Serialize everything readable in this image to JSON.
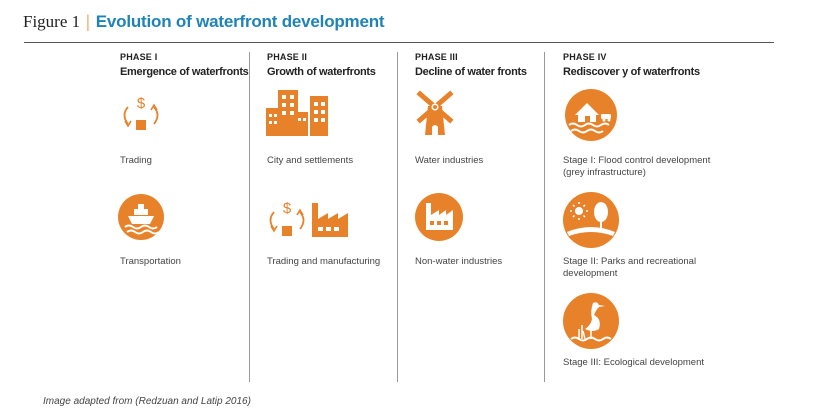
{
  "figure": {
    "label": "Figure 1",
    "separator": "|",
    "title": "Evolution of waterfront development"
  },
  "accent_color": "#e8822a",
  "title_color": "#1f83b8",
  "phases": [
    {
      "phase": "PHASE I",
      "title": "Emergence of waterfronts",
      "items": [
        {
          "icon": "trade-cycle-icon",
          "caption": "Trading"
        },
        {
          "icon": "ship-icon",
          "caption": "Transportation"
        }
      ]
    },
    {
      "phase": "PHASE II",
      "title": "Growth of waterfronts",
      "items": [
        {
          "icon": "city-buildings-icon",
          "caption": "City and settlements"
        },
        {
          "icon": "trade-factory-icon",
          "caption": "Trading and manufacturing"
        }
      ]
    },
    {
      "phase": "PHASE III",
      "title": "Decline of water fronts",
      "items": [
        {
          "icon": "windmill-icon",
          "caption": "Water industries"
        },
        {
          "icon": "factory-icon",
          "caption": "Non-water industries"
        }
      ]
    },
    {
      "phase": "PHASE IV",
      "title": "Rediscover y of waterfronts",
      "items": [
        {
          "icon": "flood-house-icon",
          "caption_lines": [
            "Stage I: Flood control development",
            "(grey infrastructure)"
          ]
        },
        {
          "icon": "park-icon",
          "caption_lines": [
            "Stage II: Parks and recreational",
            "development"
          ]
        },
        {
          "icon": "heron-icon",
          "caption": "Stage III: Ecological development"
        }
      ]
    }
  ],
  "footnote": "Image adapted from (Redzuan and Latip 2016)"
}
